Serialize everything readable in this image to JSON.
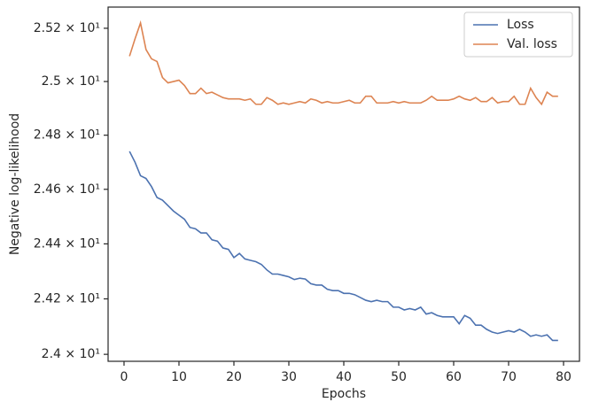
{
  "chart_data": {
    "type": "line",
    "xlabel": "Epochs",
    "ylabel": "Negative log-likelihood",
    "x": [
      1,
      2,
      3,
      4,
      5,
      6,
      7,
      8,
      9,
      10,
      11,
      12,
      13,
      14,
      15,
      16,
      17,
      18,
      19,
      20,
      21,
      22,
      23,
      24,
      25,
      26,
      27,
      28,
      29,
      30,
      31,
      32,
      33,
      34,
      35,
      36,
      37,
      38,
      39,
      40,
      41,
      42,
      43,
      44,
      45,
      46,
      47,
      48,
      49,
      50,
      51,
      52,
      53,
      54,
      55,
      56,
      57,
      58,
      59,
      60,
      61,
      62,
      63,
      64,
      65,
      66,
      67,
      68,
      69,
      70,
      71,
      72,
      73,
      74,
      75,
      76,
      77,
      78,
      79
    ],
    "series": [
      {
        "name": "Loss",
        "color": "#4c72b0",
        "values": [
          24.74,
          24.7,
          24.65,
          24.64,
          24.61,
          24.57,
          24.56,
          24.54,
          24.52,
          24.505,
          24.49,
          24.46,
          24.455,
          24.44,
          24.44,
          24.415,
          24.41,
          24.385,
          24.38,
          24.35,
          24.365,
          24.345,
          24.34,
          24.335,
          24.325,
          24.305,
          24.29,
          24.29,
          24.285,
          24.28,
          24.27,
          24.275,
          24.272,
          24.255,
          24.25,
          24.25,
          24.235,
          24.23,
          24.23,
          24.22,
          24.22,
          24.215,
          24.205,
          24.195,
          24.19,
          24.195,
          24.19,
          24.19,
          24.17,
          24.17,
          24.16,
          24.165,
          24.16,
          24.17,
          24.145,
          24.15,
          24.14,
          24.135,
          24.135,
          24.135,
          24.11,
          24.14,
          24.13,
          24.105,
          24.105,
          24.09,
          24.08,
          24.075,
          24.08,
          24.085,
          24.08,
          24.09,
          24.08,
          24.065,
          24.07,
          24.065,
          24.07,
          24.05,
          24.05
        ]
      },
      {
        "name": "Val. loss",
        "color": "#dd8452",
        "values": [
          25.095,
          25.16,
          25.22,
          25.12,
          25.085,
          25.075,
          25.015,
          24.995,
          25.0,
          25.005,
          24.985,
          24.955,
          24.955,
          24.975,
          24.955,
          24.96,
          24.95,
          24.94,
          24.935,
          24.935,
          24.935,
          24.93,
          24.935,
          24.915,
          24.915,
          24.94,
          24.93,
          24.915,
          24.92,
          24.915,
          24.92,
          24.925,
          24.92,
          24.935,
          24.93,
          24.92,
          24.925,
          24.92,
          24.92,
          24.925,
          24.93,
          24.92,
          24.92,
          24.945,
          24.945,
          24.92,
          24.92,
          24.92,
          24.925,
          24.92,
          24.925,
          24.92,
          24.92,
          24.92,
          24.93,
          24.945,
          24.93,
          24.93,
          24.93,
          24.935,
          24.945,
          24.935,
          24.93,
          24.94,
          24.925,
          24.925,
          24.94,
          24.92,
          24.925,
          24.925,
          24.945,
          24.915,
          24.915,
          24.975,
          24.94,
          24.915,
          24.96,
          24.945,
          24.945
        ]
      }
    ],
    "xlim": [
      -2.9,
      82.9
    ],
    "xticks": [
      0,
      10,
      20,
      30,
      40,
      50,
      60,
      70,
      80
    ],
    "ylim": [
      23.975,
      25.28
    ],
    "yscale": "log",
    "yticks": [
      {
        "value": 24.0,
        "label": "2.4 × 10¹"
      },
      {
        "value": 24.2,
        "label": "2.42 × 10¹"
      },
      {
        "value": 24.4,
        "label": "2.44 × 10¹"
      },
      {
        "value": 24.6,
        "label": "2.46 × 10¹"
      },
      {
        "value": 24.8,
        "label": "2.48 × 10¹"
      },
      {
        "value": 25.0,
        "label": "2.5 × 10¹"
      },
      {
        "value": 25.2,
        "label": "2.52 × 10¹"
      }
    ],
    "grid": false,
    "legend": "upper right"
  }
}
